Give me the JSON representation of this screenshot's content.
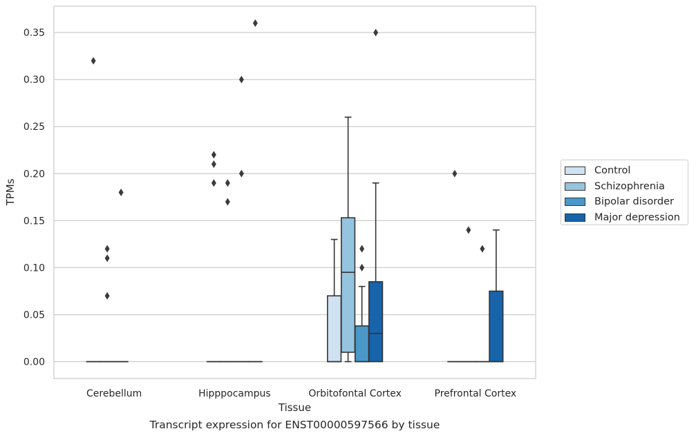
{
  "chart_data": {
    "type": "box",
    "title": "Transcript expression for ENST00000597566 by tissue",
    "xlabel": "Tissue",
    "ylabel": "TPMs",
    "ylim": [
      -0.018,
      0.378
    ],
    "yticks": [
      "0.00",
      "0.05",
      "0.10",
      "0.15",
      "0.20",
      "0.25",
      "0.30",
      "0.35"
    ],
    "grid": "horizontal",
    "legend_position": "right",
    "categories": [
      "Cerebellum",
      "Hipppocampus",
      "Orbitofontal Cortex",
      "Prefrontal Cortex"
    ],
    "series": [
      {
        "name": "Control",
        "color": "#d0e1f2",
        "boxes": [
          {
            "q1": 0,
            "median": 0,
            "q3": 0,
            "whislo": 0,
            "whishi": 0,
            "fliers": [
              0.32
            ]
          },
          {
            "q1": 0,
            "median": 0,
            "q3": 0,
            "whislo": 0,
            "whishi": 0,
            "fliers": [
              0.22,
              0.21,
              0.19
            ]
          },
          {
            "q1": 0,
            "median": 0,
            "q3": 0.07,
            "whislo": 0,
            "whishi": 0.13,
            "fliers": []
          },
          {
            "q1": 0,
            "median": 0,
            "q3": 0,
            "whislo": 0,
            "whishi": 0,
            "fliers": [
              0.2
            ]
          }
        ]
      },
      {
        "name": "Schizophrenia",
        "color": "#94c4df",
        "boxes": [
          {
            "q1": 0,
            "median": 0,
            "q3": 0,
            "whislo": 0,
            "whishi": 0,
            "fliers": [
              0.12,
              0.11,
              0.07
            ]
          },
          {
            "q1": 0,
            "median": 0,
            "q3": 0,
            "whislo": 0,
            "whishi": 0,
            "fliers": [
              0.19,
              0.17
            ]
          },
          {
            "q1": 0.01,
            "median": 0.095,
            "q3": 0.153,
            "whislo": 0,
            "whishi": 0.26,
            "fliers": []
          },
          {
            "q1": 0,
            "median": 0,
            "q3": 0,
            "whislo": 0,
            "whishi": 0,
            "fliers": [
              0.14
            ]
          }
        ]
      },
      {
        "name": "Bipolar disorder",
        "color": "#4a98c9",
        "boxes": [
          {
            "q1": 0,
            "median": 0,
            "q3": 0,
            "whislo": 0,
            "whishi": 0,
            "fliers": [
              0.18
            ]
          },
          {
            "q1": 0,
            "median": 0,
            "q3": 0,
            "whislo": 0,
            "whishi": 0,
            "fliers": [
              0.3,
              0.2
            ]
          },
          {
            "q1": 0,
            "median": 0,
            "q3": 0.038,
            "whislo": 0,
            "whishi": 0.08,
            "fliers": [
              0.12,
              0.1
            ]
          },
          {
            "q1": 0,
            "median": 0,
            "q3": 0,
            "whislo": 0,
            "whishi": 0,
            "fliers": [
              0.12
            ]
          }
        ]
      },
      {
        "name": "Major depression",
        "color": "#1764ab",
        "boxes": [
          null,
          {
            "q1": 0,
            "median": 0,
            "q3": 0,
            "whislo": 0,
            "whishi": 0,
            "fliers": [
              0.36
            ]
          },
          {
            "q1": 0,
            "median": 0.03,
            "q3": 0.085,
            "whislo": 0,
            "whishi": 0.19,
            "fliers": [
              0.35
            ]
          },
          {
            "q1": 0,
            "median": 0,
            "q3": 0.075,
            "whislo": 0,
            "whishi": 0.14,
            "fliers": []
          }
        ]
      }
    ]
  }
}
